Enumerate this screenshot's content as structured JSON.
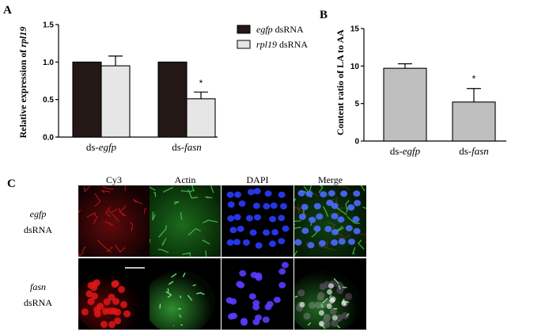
{
  "chart_data": [
    {
      "panel": "A",
      "type": "bar",
      "ylabel_parts": [
        {
          "t": "Relative expression of ",
          "i": false
        },
        {
          "t": "rpl19",
          "i": true
        }
      ],
      "categories": [
        [
          {
            "t": "ds-",
            "i": false
          },
          {
            "t": "egfp",
            "i": true
          }
        ],
        [
          {
            "t": "ds-",
            "i": false
          },
          {
            "t": "fasn",
            "i": true
          }
        ]
      ],
      "ylim": [
        0,
        1.5
      ],
      "yticks": [
        "0.0",
        "0.5",
        "1.0",
        "1.5"
      ],
      "series": [
        {
          "name_parts": [
            {
              "t": "egfp",
              "i": true
            },
            {
              "t": " dsRNA",
              "i": false
            }
          ],
          "values": [
            1.0,
            1.0
          ],
          "errors": [
            0,
            0
          ],
          "color": "#231815"
        },
        {
          "name_parts": [
            {
              "t": "rpl19",
              "i": true
            },
            {
              "t": " dsRNA",
              "i": false
            }
          ],
          "values": [
            0.95,
            0.51
          ],
          "errors": [
            0.13,
            0.09
          ],
          "color": "#e6e6e6"
        }
      ],
      "annotations": [
        {
          "series": 1,
          "category": 1,
          "text": "*"
        }
      ],
      "legend": "top-right",
      "grid": false
    },
    {
      "panel": "B",
      "type": "bar",
      "ylabel_parts": [
        {
          "t": "Content ratio of LA to AA",
          "i": false
        }
      ],
      "categories": [
        [
          {
            "t": "ds-",
            "i": false
          },
          {
            "t": "egfp",
            "i": true
          }
        ],
        [
          {
            "t": "ds-",
            "i": false
          },
          {
            "t": "fasn",
            "i": true
          }
        ]
      ],
      "ylim": [
        0,
        15
      ],
      "yticks": [
        "0",
        "5",
        "10",
        "15"
      ],
      "series": [
        {
          "values": [
            9.7,
            5.2
          ],
          "errors": [
            0.6,
            1.8
          ],
          "color": "#bfbfbf"
        }
      ],
      "annotations": [
        {
          "series": 0,
          "category": 1,
          "text": "*"
        }
      ],
      "grid": false
    }
  ],
  "microscopy": {
    "panel": "C",
    "columns": [
      "Cy3",
      "Actin",
      "DAPI",
      "Merge"
    ],
    "rows": [
      [
        {
          "t": "egfp",
          "i": true
        },
        {
          "t": "dsRNA",
          "i": false
        }
      ],
      [
        {
          "t": "fasn",
          "i": true
        },
        {
          "t": "dsRNA",
          "i": false
        }
      ]
    ]
  }
}
